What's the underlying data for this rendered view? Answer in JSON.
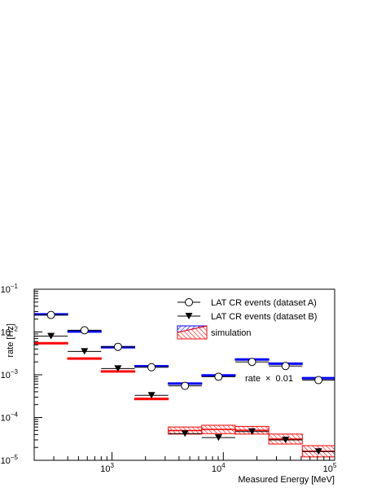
{
  "chart_data": {
    "type": "scatter",
    "title": "",
    "xlabel": "Measured Energy [MeV]",
    "ylabel": "rate [Hz]",
    "xscale": "log",
    "yscale": "log",
    "xlim": [
      200,
      100000
    ],
    "ylim": [
      1e-05,
      0.1
    ],
    "x_tick_labels": [
      {
        "value": 1000,
        "base": "10",
        "exp": "3"
      },
      {
        "value": 10000,
        "base": "10",
        "exp": "4"
      },
      {
        "value": 100000,
        "base": "10",
        "exp": "5"
      }
    ],
    "y_tick_labels": [
      {
        "value": 1e-05,
        "base": "10",
        "exp": "−5"
      },
      {
        "value": 0.0001,
        "base": "10",
        "exp": "−4"
      },
      {
        "value": 0.001,
        "base": "10",
        "exp": "−3"
      },
      {
        "value": 0.01,
        "base": "10",
        "exp": "−2"
      },
      {
        "value": 0.1,
        "base": "10",
        "exp": "−1"
      }
    ],
    "bin_edges": [
      200,
      400,
      800,
      1600,
      3200,
      6400,
      12800,
      25600,
      51200,
      100000
    ],
    "bin_centers": [
      283,
      566,
      1131,
      2263,
      4525,
      9051,
      18102,
      36204,
      71554
    ],
    "series": [
      {
        "name": "LAT CR events (dataset A)",
        "marker": "open-circle",
        "color": "#000000",
        "y": [
          0.025,
          0.011,
          0.0045,
          0.0015,
          0.00055,
          0.0009,
          0.002,
          0.0016,
          0.00075
        ]
      },
      {
        "name": "LAT CR events (dataset B)",
        "marker": "filled-triangle-down",
        "color": "#000000",
        "y": [
          0.008,
          0.0035,
          0.0014,
          0.00033,
          4.2e-05,
          3.4e-05,
          4.7e-05,
          3e-05,
          1.6e-05
        ]
      },
      {
        "name": "simulation",
        "kind": "band",
        "groups": [
          {
            "color": "#0000ff",
            "y_low": [
              0.0255,
              0.01,
              0.0044,
              0.00155,
              0.00062,
              0.00095,
              0.0022,
              0.0018,
              0.00082
            ],
            "y_high": [
              0.027,
              0.0107,
              0.0046,
              0.00165,
              0.00065,
              0.00101,
              0.00238,
              0.0019,
              0.00087
            ]
          },
          {
            "color": "#ff0000",
            "y_low": [
              0.0054,
              0.0023,
              0.00115,
              0.00026,
              4.1e-05,
              4.2e-05,
              4.1e-05,
              2.4e-05,
              1.2e-05
            ],
            "y_high": [
              0.0057,
              0.0025,
              0.00125,
              0.000285,
              6e-05,
              6.6e-05,
              6.2e-05,
              4.1e-05,
              2.2e-05
            ]
          }
        ]
      }
    ],
    "annotation": {
      "prefix": "rate",
      "symbol": "×",
      "value": "0.01"
    },
    "legend": {
      "placement": "top-right"
    }
  }
}
